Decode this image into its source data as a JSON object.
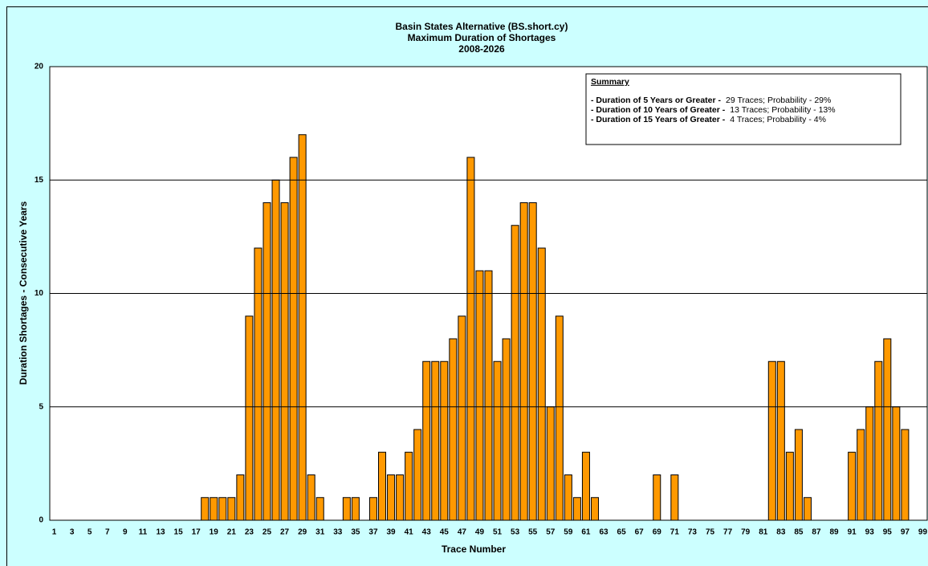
{
  "chart_data": {
    "type": "bar",
    "title": [
      "Basin States Alternative (BS.short.cy)",
      "Maximum Duration of Shortages",
      "2008-2026"
    ],
    "x_label": "Trace Number",
    "y_label": "Duration Shortages - Consecutive Years",
    "categories": [
      "1",
      null,
      "3",
      null,
      "5",
      null,
      "7",
      null,
      "9",
      null,
      "11",
      null,
      "13",
      null,
      "15",
      null,
      "17",
      null,
      "19",
      null,
      "21",
      null,
      "23",
      null,
      "25",
      null,
      "27",
      null,
      "29",
      null,
      "31",
      null,
      "33",
      null,
      "35",
      null,
      "37",
      null,
      "39",
      null,
      "41",
      null,
      "43",
      null,
      "45",
      null,
      "47",
      null,
      "49",
      null,
      "51",
      null,
      "53",
      null,
      "55",
      null,
      "57",
      null,
      "59",
      null,
      "61",
      null,
      "63",
      null,
      "65",
      null,
      "67",
      null,
      "69",
      null,
      "71",
      null,
      "73",
      null,
      "75",
      null,
      "77",
      null,
      "79",
      null,
      "81",
      null,
      "83",
      null,
      "85",
      null,
      "87",
      null,
      "89",
      null,
      "91",
      null,
      "93",
      null,
      "95",
      null,
      "97",
      null,
      "99"
    ],
    "values": [
      0,
      0,
      0,
      0,
      0,
      0,
      0,
      0,
      0,
      0,
      0,
      0,
      0,
      0,
      0,
      0,
      0,
      1,
      1,
      1,
      1,
      2,
      9,
      12,
      14,
      15,
      14,
      16,
      17,
      2,
      1,
      0,
      0,
      1,
      1,
      0,
      1,
      3,
      2,
      2,
      3,
      4,
      7,
      7,
      7,
      8,
      9,
      16,
      11,
      11,
      7,
      8,
      13,
      14,
      14,
      12,
      5,
      9,
      2,
      1,
      3,
      1,
      0,
      0,
      0,
      0,
      0,
      0,
      2,
      0,
      2,
      0,
      0,
      0,
      0,
      0,
      0,
      0,
      0,
      0,
      0,
      7,
      7,
      3,
      4,
      1,
      0,
      0,
      0,
      0,
      3,
      4,
      5,
      7,
      8,
      5,
      4,
      0,
      0
    ],
    "color": "#ff9900",
    "ylim": [
      0,
      20
    ],
    "yticks": [
      0,
      5,
      10,
      15,
      20
    ],
    "grid": true,
    "summary": {
      "heading": "Summary",
      "lines": [
        {
          "bold": "- Duration of 5 Years or Greater -",
          "text": "29 Traces; Probability - 29%"
        },
        {
          "bold": "- Duration of 10 Years of Greater -",
          "text": "13 Traces; Probability - 13%"
        },
        {
          "bold": "- Duration of 15 Years of Greater -",
          "text": "4 Traces; Probability -    4%"
        }
      ]
    }
  }
}
